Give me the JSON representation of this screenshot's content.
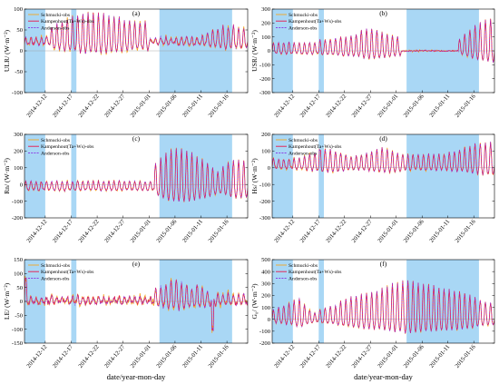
{
  "figure": {
    "xlabel": "date/year-mon-day",
    "date_ticks": [
      "2014-12-12",
      "2014-12-17",
      "2014-12-22",
      "2014-12-27",
      "2015-01-01",
      "2015-01-06",
      "2015-01-11",
      "2015-01-16"
    ],
    "legend": [
      "Schmucki-obs",
      "Kampenhout(Ta+Ws)-obs",
      "Anderson-obs"
    ]
  },
  "colors": {
    "schmucki": "#f5a623",
    "kampenhout": "#e8174a",
    "anderson": "#8a2be2",
    "shade": "#a9d7f5"
  },
  "chart_data": [
    {
      "type": "line",
      "panel": "(a)",
      "ylabel": "ULR/ (W·m⁻²)",
      "ylim": [
        -100,
        100
      ],
      "yticks": [
        -100,
        -50,
        0,
        50,
        100
      ],
      "xlim": [
        "2014-12-08",
        "2015-01-20"
      ],
      "shaded": [
        [
          "2014-12-08",
          "2014-12-12"
        ],
        [
          "2014-12-17",
          "2014-12-18"
        ],
        [
          "2015-01-03",
          "2015-01-17"
        ]
      ],
      "baseline": 20,
      "daily_amplitude": [
        12,
        12,
        12,
        12,
        15,
        35,
        45,
        50,
        55,
        60,
        65,
        68,
        70,
        72,
        70,
        68,
        65,
        60,
        60,
        55,
        55,
        50,
        50,
        50,
        10,
        10,
        12,
        12,
        12,
        12,
        12,
        12,
        12,
        12,
        15,
        25,
        30,
        35,
        40,
        40,
        40,
        35,
        35
      ],
      "peaks": [],
      "series_spread": 6,
      "series": [
        {
          "name": "Schmucki-obs"
        },
        {
          "name": "Kampenhout(Ta+Ws)-obs"
        },
        {
          "name": "Anderson-obs"
        }
      ]
    },
    {
      "type": "line",
      "panel": "(b)",
      "ylabel": "USR/ (W·m⁻²)",
      "ylim": [
        -300,
        300
      ],
      "yticks": [
        -300,
        -200,
        -100,
        0,
        100,
        200,
        300
      ],
      "xlim": [
        "2014-12-08",
        "2015-01-20"
      ],
      "shaded": [
        [
          "2014-12-08",
          "2014-12-12"
        ],
        [
          "2014-12-17",
          "2014-12-18"
        ],
        [
          "2015-01-03",
          "2015-01-17"
        ]
      ],
      "baseline": 0,
      "daily_amplitude": [
        60,
        60,
        60,
        60,
        60,
        60,
        60,
        60,
        60,
        80,
        80,
        80,
        90,
        100,
        100,
        110,
        120,
        150,
        160,
        160,
        150,
        130,
        120,
        110,
        100,
        0,
        0,
        0,
        0,
        0,
        0,
        0,
        0,
        0,
        0,
        0,
        80,
        120,
        150,
        180,
        200,
        220,
        230
      ],
      "peaks": [],
      "series_spread": 8,
      "series": [
        {
          "name": "Schmucki-obs"
        },
        {
          "name": "Kampenhout(Ta+Ws)-obs"
        },
        {
          "name": "Anderson-obs"
        }
      ]
    },
    {
      "type": "line",
      "panel": "(c)",
      "ylabel": "Rn/ (W·m⁻²)",
      "ylim": [
        -200,
        300
      ],
      "yticks": [
        -200,
        -100,
        0,
        100,
        200,
        300
      ],
      "xlim": [
        "2014-12-08",
        "2015-01-20"
      ],
      "shaded": [
        [
          "2014-12-08",
          "2014-12-12"
        ],
        [
          "2014-12-17",
          "2014-12-18"
        ],
        [
          "2015-01-03",
          "2015-01-17"
        ]
      ],
      "baseline": -20,
      "daily_amplitude": [
        40,
        40,
        40,
        40,
        40,
        40,
        40,
        40,
        40,
        40,
        40,
        40,
        40,
        40,
        40,
        40,
        40,
        40,
        40,
        40,
        40,
        40,
        40,
        40,
        40,
        150,
        180,
        210,
        230,
        240,
        235,
        225,
        210,
        190,
        170,
        150,
        120,
        100,
        130,
        150,
        170,
        170,
        165
      ],
      "peaks": [],
      "series_spread": 8,
      "series": [
        {
          "name": "Schmucki-obs"
        },
        {
          "name": "Kampenhout(Ta+Ws)-obs"
        },
        {
          "name": "Anderson-obs"
        }
      ]
    },
    {
      "type": "line",
      "panel": "(d)",
      "ylabel": "Hs/ (W·m⁻²)",
      "ylim": [
        -300,
        200
      ],
      "yticks": [
        -300,
        -200,
        -100,
        0,
        100,
        200
      ],
      "xlim": [
        "2014-12-08",
        "2015-01-20"
      ],
      "shaded": [
        [
          "2014-12-08",
          "2014-12-12"
        ],
        [
          "2014-12-17",
          "2014-12-18"
        ],
        [
          "2015-01-03",
          "2015-01-17"
        ]
      ],
      "baseline": 10,
      "daily_amplitude": [
        40,
        40,
        40,
        40,
        45,
        50,
        60,
        70,
        80,
        90,
        100,
        100,
        90,
        80,
        70,
        60,
        60,
        70,
        80,
        90,
        100,
        110,
        100,
        90,
        80,
        70,
        70,
        70,
        70,
        70,
        70,
        70,
        70,
        70,
        80,
        90,
        100,
        110,
        120,
        130,
        140,
        140,
        140
      ],
      "peaks": [
        [
          9,
          100
        ]
      ],
      "series_spread": 10,
      "series": [
        {
          "name": "Schmucki-obs"
        },
        {
          "name": "Kampenhout(Ta+Ws)-obs"
        },
        {
          "name": "Anderson-obs"
        }
      ]
    },
    {
      "type": "line",
      "panel": "(e)",
      "ylabel": "LE/ (W·m⁻²)",
      "ylim": [
        -150,
        150
      ],
      "yticks": [
        -150,
        -100,
        -50,
        0,
        50,
        100,
        150
      ],
      "xlim": [
        "2014-12-08",
        "2015-01-20"
      ],
      "shaded": [
        [
          "2014-12-08",
          "2014-12-12"
        ],
        [
          "2014-12-17",
          "2014-12-18"
        ],
        [
          "2015-01-03",
          "2015-01-17"
        ]
      ],
      "baseline": 0,
      "daily_amplitude": [
        20,
        15,
        15,
        15,
        15,
        15,
        15,
        15,
        15,
        15,
        20,
        15,
        15,
        15,
        15,
        15,
        15,
        15,
        15,
        15,
        15,
        15,
        15,
        15,
        15,
        50,
        55,
        60,
        70,
        80,
        70,
        60,
        50,
        60,
        50,
        40,
        30,
        30,
        30,
        30,
        25,
        25,
        25
      ],
      "peaks": [
        [
          0,
          80
        ],
        [
          36,
          -100
        ]
      ],
      "series_spread": 12,
      "series": [
        {
          "name": "Schmucki-obs"
        },
        {
          "name": "Kampenhout(Ta+Ws)-obs"
        },
        {
          "name": "Anderson-obs"
        }
      ]
    },
    {
      "type": "line",
      "panel": "(f)",
      "ylabel": "G₀/ (W·m⁻²)",
      "ylim": [
        -200,
        500
      ],
      "yticks": [
        -200,
        -100,
        0,
        100,
        200,
        300,
        400,
        500
      ],
      "xlim": [
        "2014-12-08",
        "2015-01-20"
      ],
      "shaded": [
        [
          "2014-12-08",
          "2014-12-12"
        ],
        [
          "2014-12-17",
          "2014-12-18"
        ],
        [
          "2015-01-03",
          "2015-01-17"
        ]
      ],
      "baseline": 0,
      "daily_amplitude": [
        80,
        100,
        120,
        140,
        160,
        180,
        120,
        80,
        60,
        80,
        100,
        110,
        120,
        150,
        170,
        190,
        200,
        210,
        220,
        230,
        240,
        260,
        280,
        300,
        300,
        320,
        330,
        320,
        310,
        300,
        290,
        280,
        270,
        260,
        250,
        240,
        230,
        220,
        200,
        180,
        160,
        150,
        140
      ],
      "peaks": [],
      "series_spread": 12,
      "series": [
        {
          "name": "Schmucki-obs"
        },
        {
          "name": "Kampenhout(Ta+Ws)-obs"
        },
        {
          "name": "Anderson-obs"
        }
      ]
    }
  ]
}
